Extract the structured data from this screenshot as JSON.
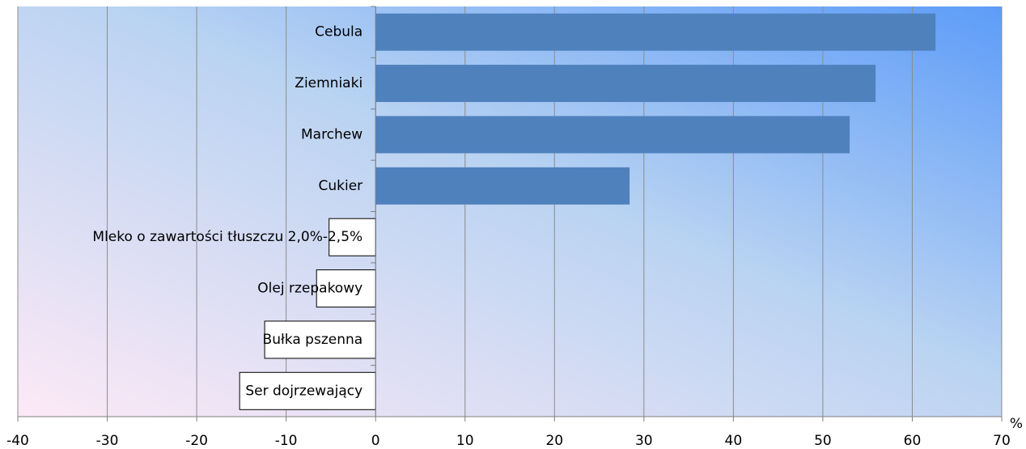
{
  "chart_data": {
    "type": "bar",
    "orientation": "horizontal",
    "categories": [
      "Cebula",
      "Ziemniaki",
      "Marchew",
      "Cukier",
      "Mleko o zawartości tłuszczu 2,0%-2,5%",
      "Olej rzepakowy",
      "Bułka pszenna",
      "Ser dojrzewający"
    ],
    "values": [
      62.6,
      55.9,
      53.0,
      28.4,
      -5.2,
      -6.6,
      -12.4,
      -15.2
    ],
    "color": "#4f81bd",
    "negative_color": "#ffffff",
    "x_label": "%",
    "xlim": [
      -40,
      70
    ],
    "xticks": [
      -40,
      -30,
      -20,
      -10,
      0,
      10,
      20,
      30,
      40,
      50,
      60,
      70
    ],
    "grid": true
  }
}
